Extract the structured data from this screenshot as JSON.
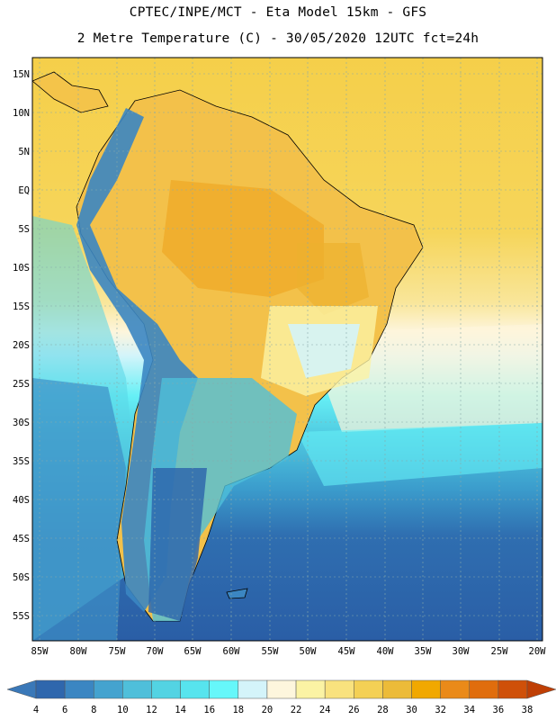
{
  "header": {
    "line1": "CPTEC/INPE/MCT -  Eta Model 15km - GFS",
    "line2": "2 Metre Temperature (C) - 30/05/2020 12UTC fct=24h"
  },
  "axes": {
    "lat_labels": [
      "15N",
      "10N",
      "5N",
      "EQ",
      "5S",
      "10S",
      "15S",
      "20S",
      "25S",
      "30S",
      "35S",
      "40S",
      "45S",
      "50S",
      "55S"
    ],
    "lon_labels": [
      "85W",
      "80W",
      "75W",
      "70W",
      "65W",
      "60W",
      "55W",
      "50W",
      "45W",
      "40W",
      "35W",
      "30W",
      "25W",
      "20W"
    ]
  },
  "legend": {
    "ticks": [
      "4",
      "6",
      "8",
      "10",
      "12",
      "14",
      "16",
      "18",
      "20",
      "22",
      "24",
      "26",
      "28",
      "30",
      "32",
      "34",
      "36",
      "38"
    ],
    "colors": [
      "#3a78b8",
      "#2f67ad",
      "#3b86c2",
      "#44a3cf",
      "#4fbfda",
      "#53d3e3",
      "#57e4ee",
      "#66f7fa",
      "#d4f4fa",
      "#fdf6dd",
      "#fbf3a4",
      "#f9e27e",
      "#f4d055",
      "#ecbb39",
      "#f1a800",
      "#ea8a19",
      "#e06d0d",
      "#cf5009",
      "#bf3f05"
    ]
  },
  "colors": {
    "sea_deep": "#2a5ea6",
    "land_warm": "#f0b934",
    "andes_cold": "#3b86c2"
  }
}
